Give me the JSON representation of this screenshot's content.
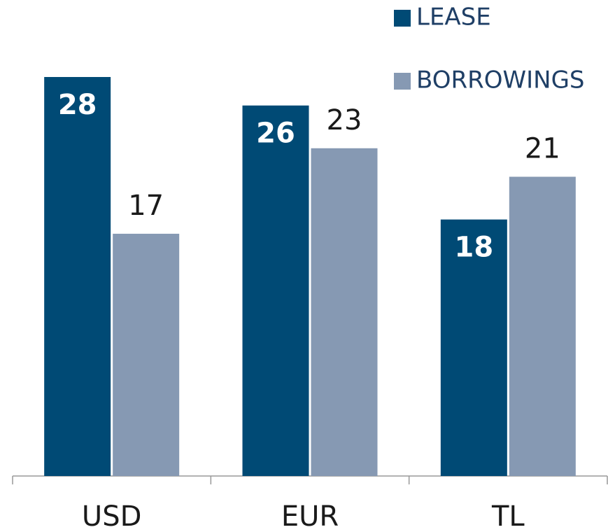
{
  "chart_data": {
    "type": "bar",
    "categories": [
      "USD",
      "EUR",
      "TL"
    ],
    "series": [
      {
        "name": "LEASE",
        "color": "#004a75",
        "values": [
          28,
          26,
          18
        ]
      },
      {
        "name": "BORROWINGS",
        "color": "#8699b3",
        "values": [
          17,
          23,
          21
        ]
      }
    ],
    "legend": "top-right"
  }
}
